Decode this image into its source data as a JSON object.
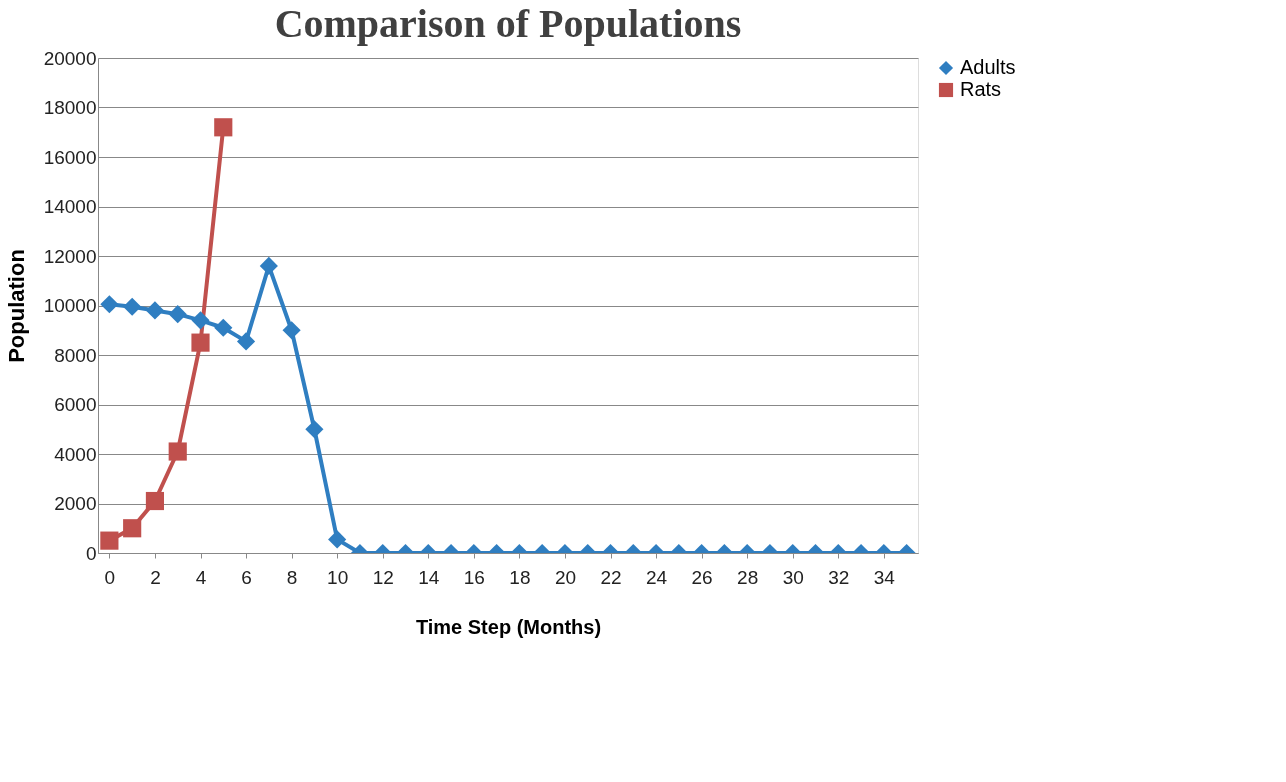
{
  "chart_data": {
    "type": "line",
    "title": "Comparison of Populations",
    "xlabel": "Time Step (Months)",
    "ylabel": "Population",
    "x": [
      0,
      1,
      2,
      3,
      4,
      5,
      6,
      7,
      8,
      9,
      10,
      11,
      12,
      13,
      14,
      15,
      16,
      17,
      18,
      19,
      20,
      21,
      22,
      23,
      24,
      25,
      26,
      27,
      28,
      29,
      30,
      31,
      32,
      33,
      34,
      35
    ],
    "series": [
      {
        "name": "Adults",
        "color": "#2f7ec1",
        "marker": "diamond",
        "values": [
          10050,
          9950,
          9800,
          9650,
          9400,
          9100,
          8550,
          11600,
          9000,
          5000,
          550,
          0,
          0,
          0,
          0,
          0,
          0,
          0,
          0,
          0,
          0,
          0,
          0,
          0,
          0,
          0,
          0,
          0,
          0,
          0,
          0,
          0,
          0,
          0,
          0,
          0
        ]
      },
      {
        "name": "Rats",
        "color": "#c0504d",
        "marker": "square",
        "values": [
          500,
          1000,
          2100,
          4100,
          8500,
          17200,
          null,
          null,
          null,
          null,
          null,
          null,
          null,
          null,
          null,
          null,
          null,
          null,
          null,
          null,
          null,
          null,
          null,
          null,
          null,
          null,
          null,
          null,
          null,
          null,
          null,
          null,
          null,
          null,
          null,
          null
        ]
      }
    ],
    "xlim": [
      -0.5,
      35.5
    ],
    "xticks": [
      0,
      2,
      4,
      6,
      8,
      10,
      12,
      14,
      16,
      18,
      20,
      22,
      24,
      26,
      28,
      30,
      32,
      34
    ],
    "ylim": [
      0,
      20000
    ],
    "yticks": [
      0,
      2000,
      4000,
      6000,
      8000,
      10000,
      12000,
      14000,
      16000,
      18000,
      20000
    ],
    "grid": "y",
    "legend": "right",
    "line_style": "solid"
  }
}
